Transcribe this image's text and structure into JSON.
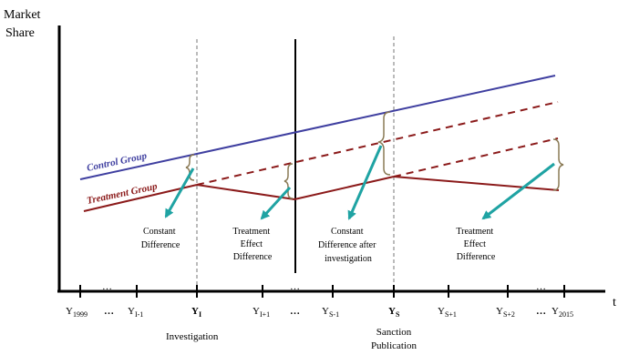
{
  "axes": {
    "y_label_line1": "Market",
    "y_label_line2": "Share",
    "x_label": "t"
  },
  "groups": {
    "control_label": "Control Group",
    "treatment_label": "Treatment Group",
    "control_color": "#3f3fa0",
    "treatment_color": "#8b1a1a",
    "arrow_color": "#1fa3a3"
  },
  "ticks": [
    {
      "base": "Y",
      "sub": "1999"
    },
    {
      "base": "Y",
      "sub": "I-1"
    },
    {
      "base": "Y",
      "sub": "I"
    },
    {
      "base": "Y",
      "sub": "I+1"
    },
    {
      "base": "Y",
      "sub": "S-1"
    },
    {
      "base": "Y",
      "sub": "S"
    },
    {
      "base": "Y",
      "sub": "S+1"
    },
    {
      "base": "Y",
      "sub": "S+2"
    },
    {
      "base": "Y",
      "sub": "2015"
    }
  ],
  "ellipsis": "…",
  "events": {
    "investigation": "Investigation",
    "sanction_line1": "Sanction",
    "sanction_line2": "Publication"
  },
  "annotations": {
    "a1": [
      "Constant",
      "Difference"
    ],
    "a2": [
      "Treatment",
      "Effect",
      "Difference"
    ],
    "a3": [
      "Constant",
      "Difference after",
      "investigation"
    ],
    "a4": [
      "Treatment",
      "Effect",
      "Difference"
    ]
  }
}
